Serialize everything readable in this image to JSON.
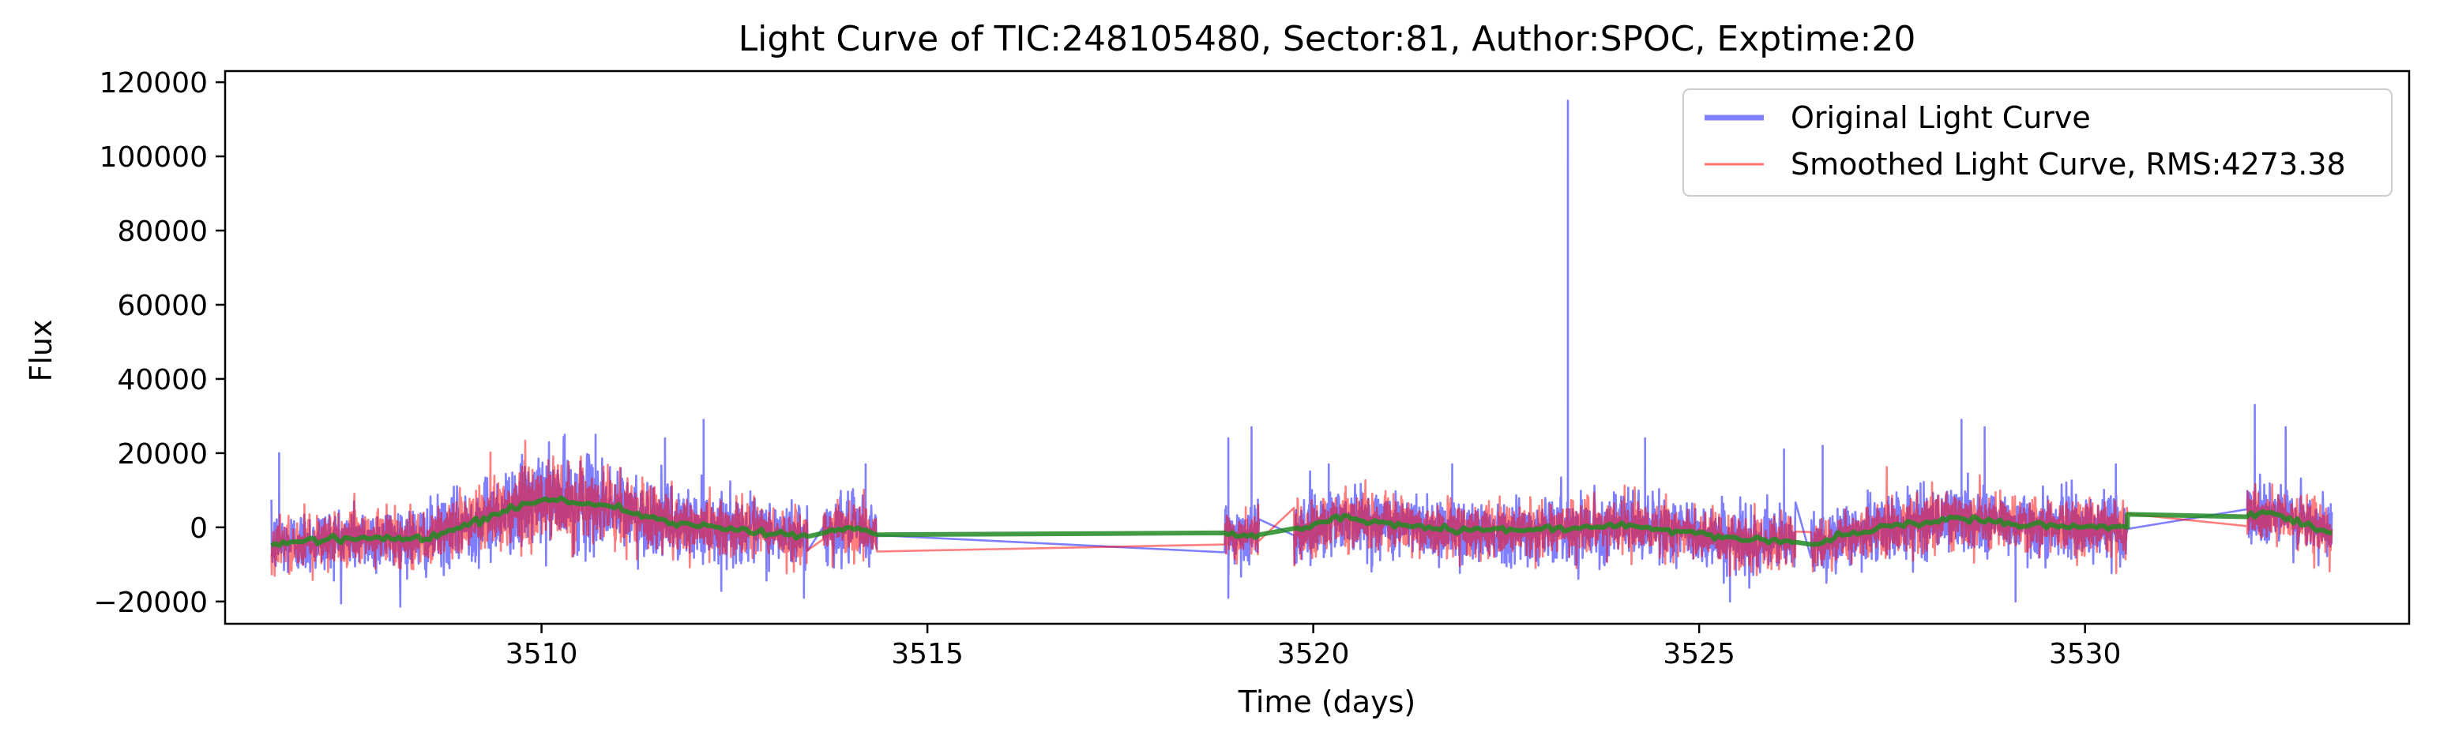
{
  "chart_data": {
    "type": "line",
    "title": "Light Curve of TIC:248105480, Sector:81, Author:SPOC, Exptime:20",
    "xlabel": "Time (days)",
    "ylabel": "Flux",
    "xlim": [
      3505.9,
      3534.2
    ],
    "ylim": [
      -26000,
      123000
    ],
    "xticks": [
      3510,
      3515,
      3520,
      3525,
      3530
    ],
    "yticks": [
      -20000,
      0,
      20000,
      40000,
      60000,
      80000,
      100000,
      120000
    ],
    "grid": false,
    "legend_position": "upper-right",
    "segments": [
      {
        "start": 3506.5,
        "end": 3513.45
      },
      {
        "start": 3513.65,
        "end": 3514.35
      },
      {
        "start": 3518.85,
        "end": 3519.3
      },
      {
        "start": 3519.75,
        "end": 3526.25
      },
      {
        "start": 3526.45,
        "end": 3530.55
      },
      {
        "start": 3532.1,
        "end": 3533.2
      }
    ],
    "series": [
      {
        "name": "Original Light Curve",
        "color": "#0000ff",
        "noise_sd": 4300,
        "spikes": [
          {
            "x": 3506.6,
            "y": 20000
          },
          {
            "x": 3510.3,
            "y": 25000
          },
          {
            "x": 3510.7,
            "y": 25000
          },
          {
            "x": 3511.6,
            "y": 24000
          },
          {
            "x": 3512.1,
            "y": 29000
          },
          {
            "x": 3514.2,
            "y": 17000
          },
          {
            "x": 3518.9,
            "y": 24000
          },
          {
            "x": 3519.2,
            "y": 27000
          },
          {
            "x": 3520.2,
            "y": 17000
          },
          {
            "x": 3521.8,
            "y": 17000
          },
          {
            "x": 3523.3,
            "y": 115000
          },
          {
            "x": 3524.3,
            "y": 24000
          },
          {
            "x": 3526.1,
            "y": 21000
          },
          {
            "x": 3526.6,
            "y": 22000
          },
          {
            "x": 3528.4,
            "y": 29000
          },
          {
            "x": 3528.7,
            "y": 27000
          },
          {
            "x": 3530.4,
            "y": 17000
          },
          {
            "x": 3532.2,
            "y": 33000
          },
          {
            "x": 3532.6,
            "y": 27000
          },
          {
            "x": 3513.4,
            "y": -19000
          },
          {
            "x": 3518.9,
            "y": -19000
          },
          {
            "x": 3525.4,
            "y": -20000
          },
          {
            "x": 3529.1,
            "y": -20000
          }
        ]
      },
      {
        "name": "Smoothed Light Curve, RMS:4273.38",
        "color": "#ff0000",
        "noise_sd": 3700
      },
      {
        "name": "",
        "color": "#228b22",
        "trend": [
          [
            3506.5,
            -4500
          ],
          [
            3507.5,
            -3000
          ],
          [
            3508.5,
            -3000
          ],
          [
            3509.2,
            2000
          ],
          [
            3510.0,
            7500
          ],
          [
            3510.8,
            6000
          ],
          [
            3511.6,
            1500
          ],
          [
            3512.5,
            -500
          ],
          [
            3513.45,
            -2500
          ],
          [
            3513.65,
            -1500
          ],
          [
            3514.0,
            0
          ],
          [
            3514.35,
            -2000
          ],
          [
            3518.85,
            -2000
          ],
          [
            3519.3,
            -2000
          ],
          [
            3519.75,
            -1000
          ],
          [
            3520.3,
            2500
          ],
          [
            3521.0,
            1000
          ],
          [
            3522.0,
            -1000
          ],
          [
            3523.0,
            -500
          ],
          [
            3524.0,
            500
          ],
          [
            3525.0,
            -1500
          ],
          [
            3525.6,
            -3500
          ],
          [
            3526.25,
            -4000
          ],
          [
            3526.45,
            -4500
          ],
          [
            3527.3,
            -500
          ],
          [
            3528.3,
            2500
          ],
          [
            3529.3,
            500
          ],
          [
            3530.55,
            0
          ],
          [
            3530.55,
            3500
          ],
          [
            3532.1,
            3500
          ],
          [
            3532.4,
            4000
          ],
          [
            3533.2,
            -1500
          ]
        ]
      }
    ]
  }
}
